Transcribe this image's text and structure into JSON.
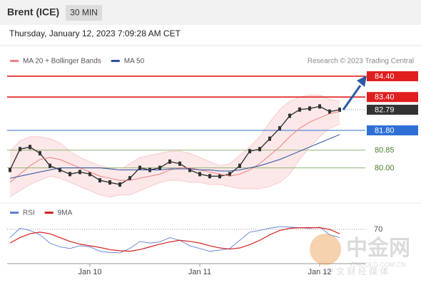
{
  "chart_data": {
    "type": "line",
    "title": "Brent (ICE)",
    "interval": "30 MIN",
    "subtitle": "Thursday, January 12, 2023 7:09:28 AM CET",
    "credit": "Research © 2023 Trading Central",
    "watermark": [
      "中金网",
      "CNGOLD.COM.CN",
      "中 文 财 经 媒 体"
    ],
    "categories": [
      null,
      null,
      null,
      null,
      null,
      null,
      null,
      null,
      "Jan 10",
      null,
      null,
      null,
      null,
      null,
      null,
      null,
      null,
      null,
      null,
      "Jan 11",
      null,
      null,
      null,
      null,
      null,
      null,
      null,
      null,
      null,
      null,
      null,
      "Jan 12",
      null,
      null
    ],
    "ylim": [
      78.48,
      84.81
    ],
    "levels": [
      {
        "value": 84.4,
        "label": "84.40",
        "color": "#e01e1e"
      },
      {
        "value": 83.4,
        "label": "83.40",
        "color": "#e01e1e"
      },
      {
        "value": 82.79,
        "label": "82.79",
        "color": "#333333"
      },
      {
        "value": 81.8,
        "label": "81.80",
        "color": "#2e6fd6"
      },
      {
        "value": 80.85,
        "label": "80.85",
        "color": "#8fb573"
      },
      {
        "value": 80,
        "label": "80.00",
        "color": "#8fb573"
      }
    ],
    "series": [
      {
        "color": "#333333",
        "values": [
          79.9,
          80.9,
          81.0,
          80.7,
          80.1,
          79.9,
          79.7,
          79.8,
          79.7,
          79.4,
          79.3,
          79.2,
          79.5,
          80.0,
          79.9,
          80.0,
          80.3,
          80.2,
          79.9,
          79.7,
          79.6,
          79.6,
          79.7,
          80.1,
          80.8,
          80.9,
          81.4,
          81.9,
          82.5,
          82.8,
          82.85,
          82.95,
          82.7,
          82.79
        ]
      },
      {
        "name": "MA 20 + Bollinger Bands",
        "color": "#f08080",
        "values": [
          79.3,
          79.7,
          80.1,
          80.4,
          80.5,
          80.4,
          80.2,
          80.0,
          79.8,
          79.6,
          79.5,
          79.4,
          79.4,
          79.5,
          79.6,
          79.7,
          79.9,
          80.0,
          80.0,
          79.9,
          79.8,
          79.7,
          79.6,
          79.7,
          79.9,
          80.2,
          80.6,
          81.0,
          81.5,
          81.9,
          82.2,
          82.4,
          82.6,
          82.7
        ],
        "upper": [
          80.8,
          81.3,
          81.5,
          81.5,
          81.4,
          81.2,
          80.8,
          80.5,
          80.3,
          80.1,
          80.0,
          79.9,
          80.2,
          80.5,
          80.6,
          80.7,
          80.8,
          80.8,
          80.7,
          80.5,
          80.3,
          80.1,
          80.2,
          80.6,
          81.0,
          81.5,
          82.2,
          82.8,
          83.2,
          83.4,
          83.5,
          83.5,
          83.3,
          83.2
        ],
        "lower": [
          78.6,
          78.9,
          79.2,
          79.4,
          79.6,
          79.5,
          79.3,
          79.1,
          78.9,
          78.7,
          78.6,
          78.7,
          78.7,
          78.9,
          79.1,
          79.3,
          79.4,
          79.4,
          79.3,
          79.3,
          79.2,
          79.2,
          79.1,
          79.0,
          79.0,
          79.0,
          79.1,
          79.3,
          79.7,
          80.4,
          81.0,
          81.5,
          81.9,
          82.1
        ]
      },
      {
        "name": "MA 50",
        "color": "#2b4f9e",
        "values": [
          79.5,
          79.6,
          79.7,
          79.8,
          79.9,
          80.0,
          80.0,
          80.0,
          80.0,
          80.0,
          79.95,
          79.9,
          79.9,
          79.9,
          79.9,
          79.9,
          79.95,
          79.95,
          79.95,
          79.9,
          79.9,
          79.85,
          79.85,
          79.9,
          80.0,
          80.1,
          80.25,
          80.4,
          80.6,
          80.8,
          81.0,
          81.2,
          81.4,
          81.6
        ]
      }
    ],
    "rsi_ylim": [
      10,
      92
    ],
    "rsi_yticks": [
      70
    ],
    "rsi_series": [
      {
        "name": "RSI",
        "color": "#5b7fd6",
        "values": [
          55,
          72,
          68,
          60,
          45,
          38,
          35,
          40,
          38,
          30,
          28,
          27,
          35,
          48,
          45,
          47,
          55,
          50,
          40,
          35,
          30,
          32,
          35,
          50,
          65,
          68,
          72,
          75,
          74,
          73,
          72,
          74,
          60,
          55
        ]
      },
      {
        "name": "9MA",
        "color": "#d62020",
        "values": [
          45,
          55,
          62,
          65,
          62,
          55,
          48,
          43,
          40,
          37,
          33,
          31,
          30,
          33,
          38,
          43,
          47,
          50,
          48,
          45,
          40,
          36,
          34,
          36,
          42,
          50,
          60,
          68,
          72,
          73,
          73,
          73,
          70,
          62
        ]
      }
    ]
  }
}
